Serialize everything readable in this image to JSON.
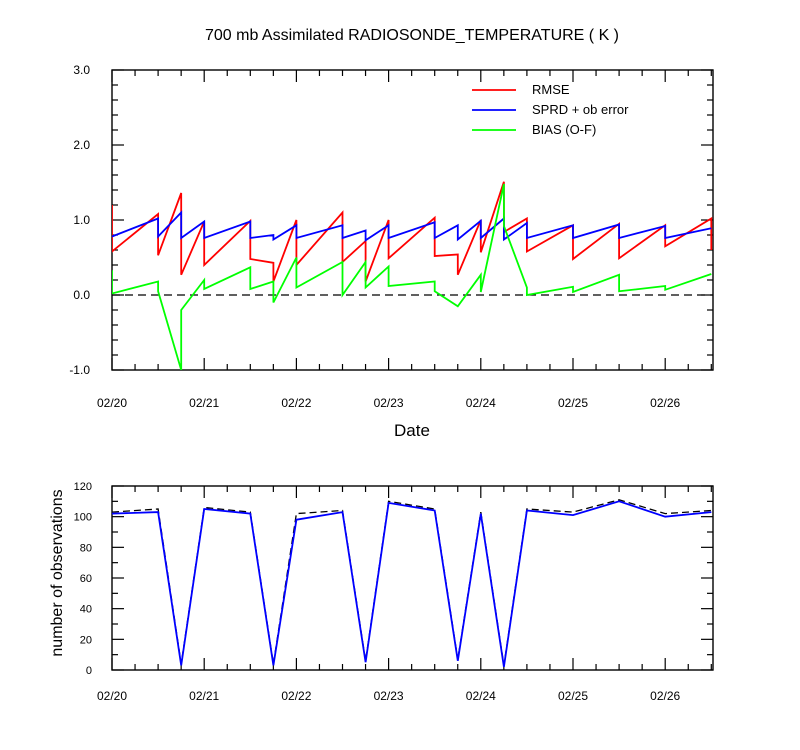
{
  "chart_data": [
    {
      "type": "line",
      "title": "700 mb Assimilated RADIOSONDE_TEMPERATURE ( K )",
      "xlabel": "Date",
      "ylabel": "",
      "ylim": [
        -1.0,
        3.0
      ],
      "yticks": [
        "-1.0",
        "0.0",
        "1.0",
        "2.0",
        "3.0"
      ],
      "xticks": [
        "02/20",
        "02/21",
        "02/22",
        "02/23",
        "02/24",
        "02/25",
        "02/26"
      ],
      "xlim_days": [
        0,
        6.5
      ],
      "zero_line": "dashed",
      "legend_position": "top-right",
      "series": [
        {
          "name": "RMSE",
          "color": "#ff0000",
          "points": [
            [
              0,
              1.2
            ],
            [
              0,
              0.58
            ],
            [
              0.5,
              1.08
            ],
            [
              0.5,
              0.53
            ],
            [
              0.75,
              1.36
            ],
            [
              0.75,
              0.27
            ],
            [
              1.0,
              0.98
            ],
            [
              1.0,
              0.4
            ],
            [
              1.5,
              0.99
            ],
            [
              1.5,
              0.48
            ],
            [
              1.75,
              0.43
            ],
            [
              1.75,
              0.18
            ],
            [
              2.0,
              1.0
            ],
            [
              2.0,
              0.4
            ],
            [
              2.5,
              1.1
            ],
            [
              2.5,
              0.44
            ],
            [
              2.75,
              0.72
            ],
            [
              2.75,
              0.18
            ],
            [
              3.0,
              1.0
            ],
            [
              3.0,
              0.49
            ],
            [
              3.5,
              1.03
            ],
            [
              3.5,
              0.52
            ],
            [
              3.75,
              0.54
            ],
            [
              3.75,
              0.27
            ],
            [
              4.0,
              1.0
            ],
            [
              4.0,
              0.57
            ],
            [
              4.25,
              1.51
            ],
            [
              4.25,
              0.84
            ],
            [
              4.5,
              1.02
            ],
            [
              4.5,
              0.58
            ],
            [
              5.0,
              0.93
            ],
            [
              5.0,
              0.48
            ],
            [
              5.5,
              0.95
            ],
            [
              5.5,
              0.49
            ],
            [
              6.0,
              0.93
            ],
            [
              6.0,
              0.65
            ],
            [
              6.5,
              1.02
            ],
            [
              6.5,
              0.6
            ]
          ]
        },
        {
          "name": "SPRD + ob error",
          "color": "#0000ff",
          "points": [
            [
              0,
              0.78
            ],
            [
              0.5,
              1.02
            ],
            [
              0.5,
              0.78
            ],
            [
              0.75,
              1.1
            ],
            [
              0.75,
              0.76
            ],
            [
              1.0,
              0.98
            ],
            [
              1.0,
              0.76
            ],
            [
              1.5,
              0.98
            ],
            [
              1.5,
              0.76
            ],
            [
              1.75,
              0.8
            ],
            [
              1.75,
              0.74
            ],
            [
              2.0,
              0.93
            ],
            [
              2.0,
              0.76
            ],
            [
              2.5,
              0.93
            ],
            [
              2.5,
              0.76
            ],
            [
              2.75,
              0.86
            ],
            [
              2.75,
              0.73
            ],
            [
              3.0,
              0.93
            ],
            [
              3.0,
              0.76
            ],
            [
              3.5,
              0.97
            ],
            [
              3.5,
              0.76
            ],
            [
              3.75,
              0.93
            ],
            [
              3.75,
              0.74
            ],
            [
              4.0,
              0.99
            ],
            [
              4.0,
              0.76
            ],
            [
              4.25,
              1.02
            ],
            [
              4.25,
              0.74
            ],
            [
              4.5,
              0.96
            ],
            [
              4.5,
              0.76
            ],
            [
              5.0,
              0.93
            ],
            [
              5.0,
              0.76
            ],
            [
              5.5,
              0.94
            ],
            [
              5.5,
              0.76
            ],
            [
              6.0,
              0.92
            ],
            [
              6.0,
              0.76
            ],
            [
              6.5,
              0.89
            ]
          ]
        },
        {
          "name": "BIAS (O-F)",
          "color": "#00ff00",
          "points": [
            [
              0,
              0.33
            ],
            [
              0,
              0.02
            ],
            [
              0.5,
              0.18
            ],
            [
              0.5,
              0.05
            ],
            [
              0.75,
              -1.0
            ],
            [
              0.75,
              -0.2
            ],
            [
              1.0,
              0.2
            ],
            [
              1.0,
              0.08
            ],
            [
              1.5,
              0.37
            ],
            [
              1.5,
              0.08
            ],
            [
              1.75,
              0.18
            ],
            [
              1.75,
              -0.1
            ],
            [
              2.0,
              0.5
            ],
            [
              2.0,
              0.1
            ],
            [
              2.5,
              0.44
            ],
            [
              2.5,
              0.0
            ],
            [
              2.75,
              0.44
            ],
            [
              2.75,
              0.1
            ],
            [
              3.0,
              0.38
            ],
            [
              3.0,
              0.12
            ],
            [
              3.5,
              0.18
            ],
            [
              3.5,
              0.05
            ],
            [
              3.75,
              -0.15
            ],
            [
              4.0,
              0.27
            ],
            [
              4.0,
              0.04
            ],
            [
              4.25,
              1.48
            ],
            [
              4.25,
              0.92
            ],
            [
              4.5,
              0.1
            ],
            [
              4.5,
              0.0
            ],
            [
              5.0,
              0.11
            ],
            [
              5.0,
              0.04
            ],
            [
              5.5,
              0.27
            ],
            [
              5.5,
              0.05
            ],
            [
              6.0,
              0.12
            ],
            [
              6.0,
              0.07
            ],
            [
              6.5,
              0.28
            ]
          ]
        }
      ]
    },
    {
      "type": "line",
      "title": "",
      "xlabel": "",
      "ylabel": "number of observations",
      "ylim": [
        0,
        120
      ],
      "yticks": [
        "0",
        "20",
        "40",
        "60",
        "80",
        "100",
        "120"
      ],
      "xticks": [
        "02/20",
        "02/21",
        "02/22",
        "02/23",
        "02/24",
        "02/25",
        "02/26"
      ],
      "xlim_days": [
        0,
        6.5
      ],
      "x": [
        0,
        0.5,
        0.75,
        1.0,
        1.5,
        1.75,
        2.0,
        2.5,
        2.75,
        3.0,
        3.5,
        3.75,
        4.0,
        4.25,
        4.5,
        5.0,
        5.5,
        6.0,
        6.5
      ],
      "series": [
        {
          "name": "",
          "color": "#000000",
          "dash": "dashed",
          "values": [
            103,
            105,
            4,
            106,
            103,
            4,
            102,
            104,
            6,
            110,
            105,
            7,
            103,
            3,
            105,
            103,
            111,
            102,
            104
          ]
        },
        {
          "name": "",
          "color": "#0000ff",
          "dash": "solid",
          "values": [
            102,
            103,
            3,
            105,
            102,
            3,
            98,
            103,
            5,
            109,
            104,
            6,
            102,
            2,
            104,
            101,
            110,
            100,
            103
          ]
        }
      ]
    }
  ]
}
